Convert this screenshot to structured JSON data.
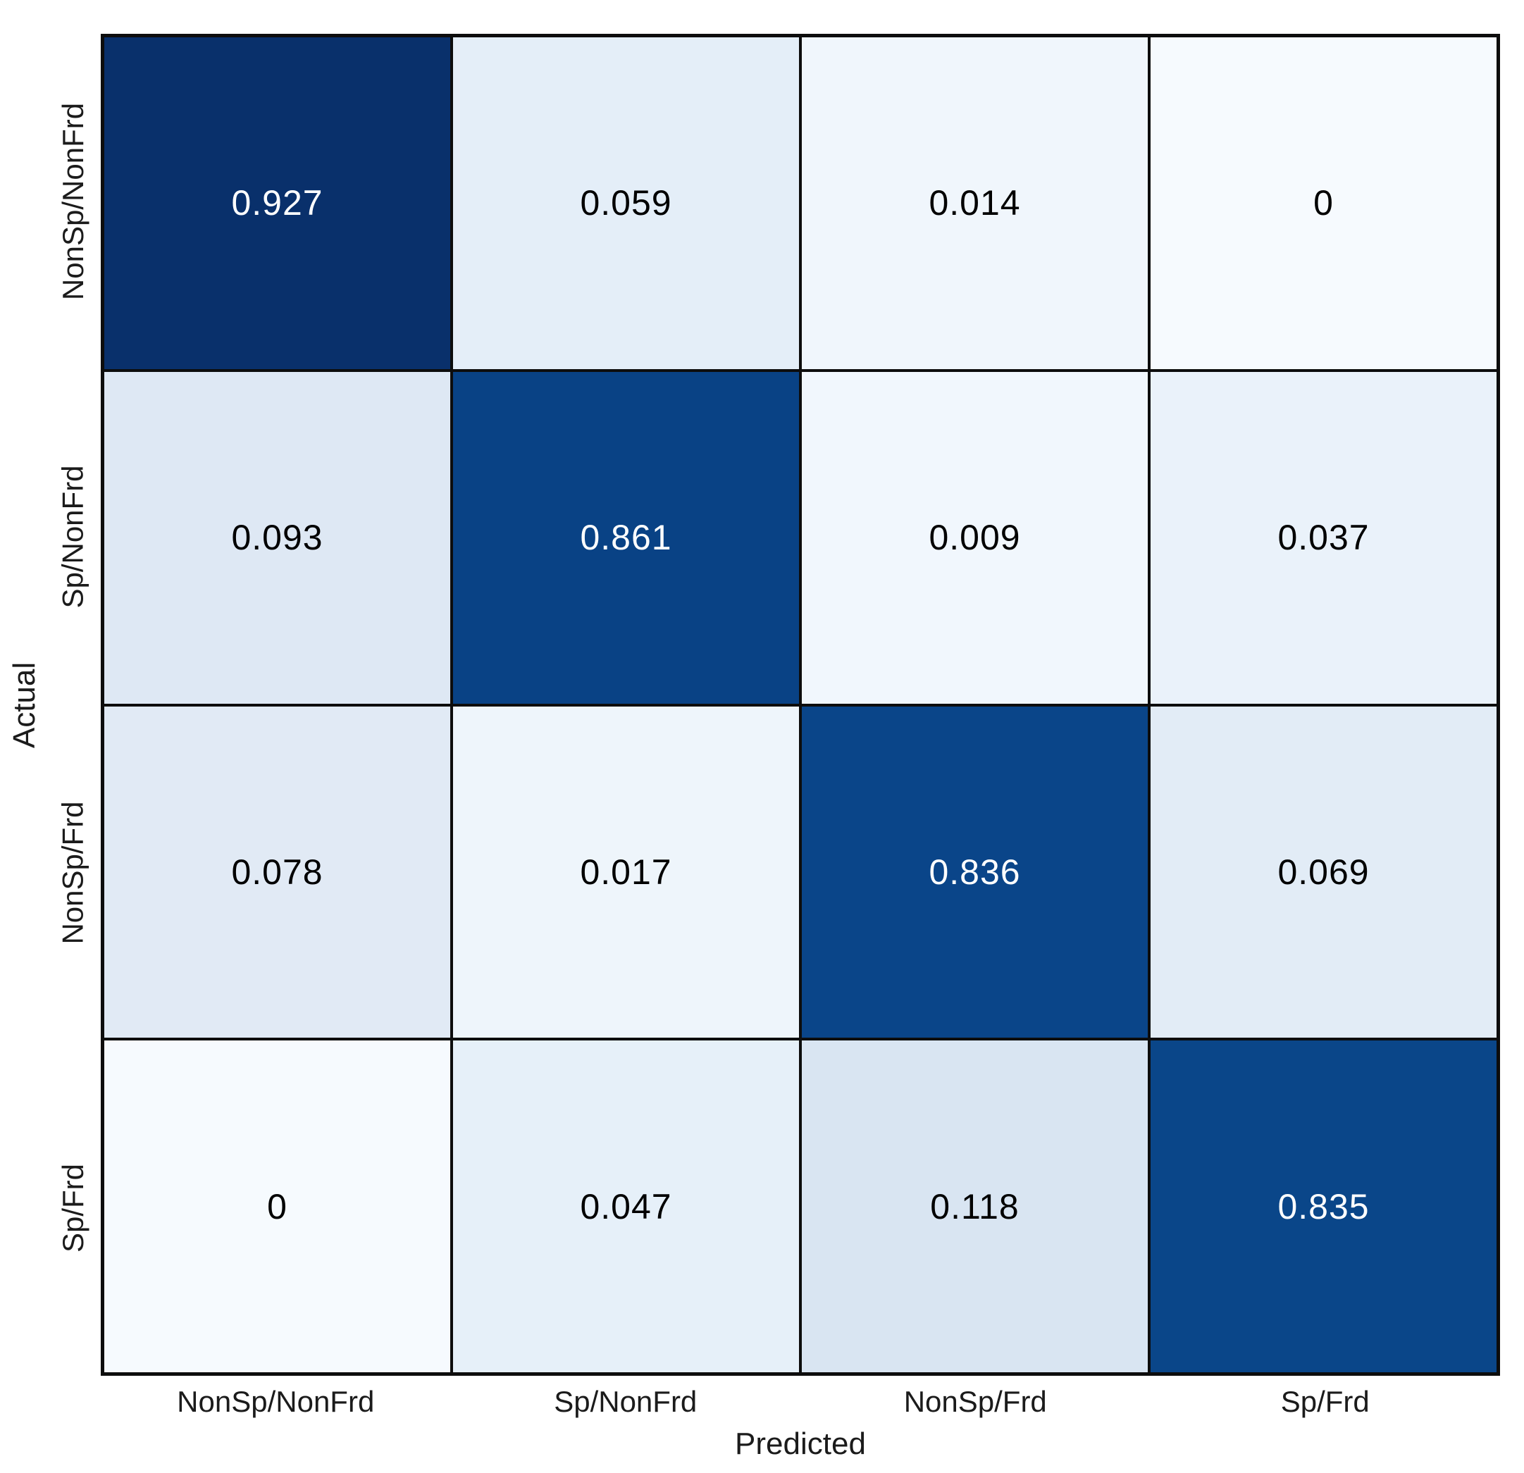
{
  "chart_data": {
    "type": "heatmap",
    "xlabel": "Predicted",
    "ylabel": "Actual",
    "x_tick_labels": [
      "NonSp/NonFrd",
      "Sp/NonFrd",
      "NonSp/Frd",
      "Sp/Frd"
    ],
    "y_tick_labels": [
      "NonSp/NonFrd",
      "Sp/NonFrd",
      "NonSp/Frd",
      "Sp/Frd"
    ],
    "colormap": "Blues",
    "color_scale": {
      "vmin": 0,
      "vmax": 0.927
    },
    "grid_line_color": "#0d0d0d",
    "label_color": "#1b1b1b",
    "rows": [
      {
        "label": "NonSp/NonFrd",
        "values": [
          0.927,
          0.059,
          0.014,
          0
        ],
        "cell_colors": [
          "#09306b",
          "#e4eef8",
          "#f0f6fc",
          "#f6fafe"
        ],
        "text_colors": [
          "#ffffff",
          "#000000",
          "#000000",
          "#000000"
        ]
      },
      {
        "label": "Sp/NonFrd",
        "values": [
          0.093,
          0.861,
          0.009,
          0.037
        ],
        "cell_colors": [
          "#dee8f4",
          "#094285",
          "#f1f7fd",
          "#eaf2fa"
        ],
        "text_colors": [
          "#000000",
          "#ffffff",
          "#000000",
          "#000000"
        ]
      },
      {
        "label": "NonSp/Frd",
        "values": [
          0.078,
          0.017,
          0.836,
          0.069
        ],
        "cell_colors": [
          "#e1eaf5",
          "#eef5fb",
          "#0a4589",
          "#e2ecf6"
        ],
        "text_colors": [
          "#000000",
          "#000000",
          "#ffffff",
          "#000000"
        ]
      },
      {
        "label": "Sp/Frd",
        "values": [
          0,
          0.047,
          0.118,
          0.835
        ],
        "cell_colors": [
          "#f6fafe",
          "#e6f0f9",
          "#d9e5f2",
          "#0a4689"
        ],
        "text_colors": [
          "#000000",
          "#000000",
          "#000000",
          "#ffffff"
        ]
      }
    ]
  }
}
